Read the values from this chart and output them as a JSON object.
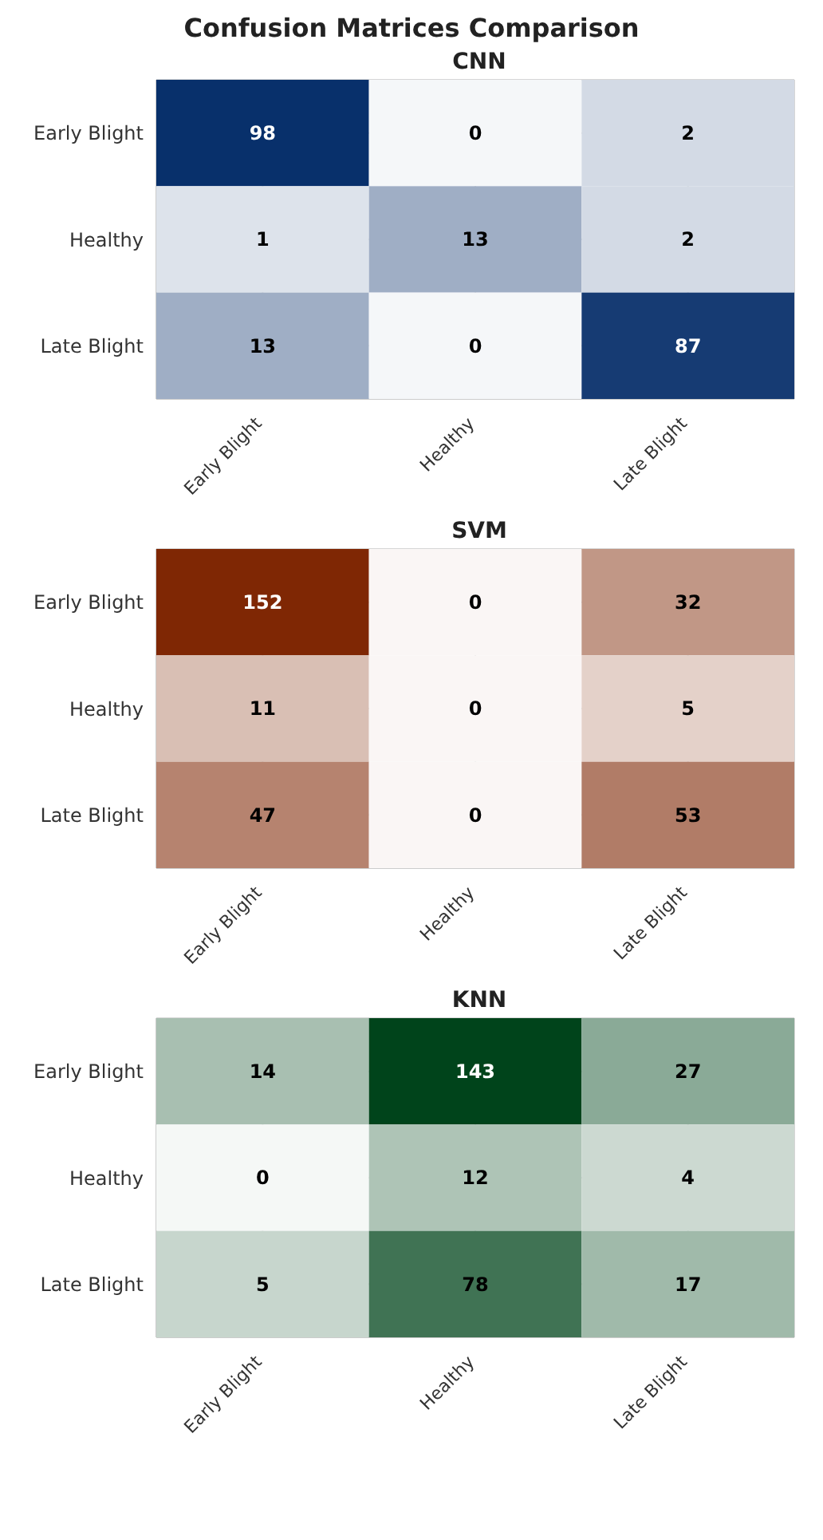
{
  "chart_data": [
    {
      "type": "heatmap",
      "title": "Confusion Matrices Comparison",
      "subtitle": "CNN",
      "color": "#08306b",
      "grid": true,
      "data_labels": true,
      "categories": [
        "Early Blight",
        "Healthy",
        "Late Blight"
      ],
      "y_categories": [
        "Early Blight",
        "Healthy",
        "Late Blight"
      ],
      "cells": [
        [
          98,
          0,
          2
        ],
        [
          1,
          13,
          2
        ],
        [
          13,
          0,
          87
        ]
      ]
    },
    {
      "type": "heatmap",
      "subtitle": "SVM",
      "color": "#7f2704",
      "grid": true,
      "data_labels": true,
      "categories": [
        "Early Blight",
        "Healthy",
        "Late Blight"
      ],
      "y_categories": [
        "Early Blight",
        "Healthy",
        "Late Blight"
      ],
      "cells": [
        [
          152,
          0,
          32
        ],
        [
          11,
          0,
          5
        ],
        [
          47,
          0,
          53
        ]
      ]
    },
    {
      "type": "heatmap",
      "subtitle": "KNN",
      "color": "#00441b",
      "grid": true,
      "data_labels": true,
      "categories": [
        "Early Blight",
        "Healthy",
        "Late Blight"
      ],
      "y_categories": [
        "Early Blight",
        "Healthy",
        "Late Blight"
      ],
      "cells": [
        [
          14,
          143,
          27
        ],
        [
          0,
          12,
          4
        ],
        [
          5,
          78,
          17
        ]
      ]
    }
  ]
}
